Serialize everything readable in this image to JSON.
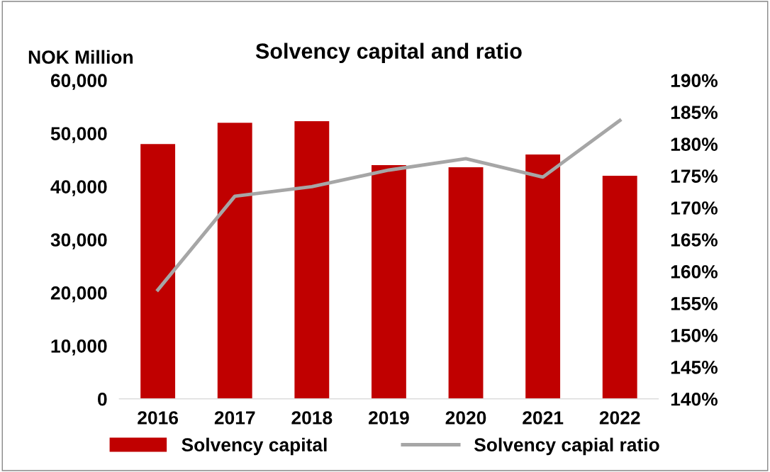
{
  "chart_data": {
    "type": "bar",
    "title": "Solvency capital and ratio",
    "ylabel": "NOK Million",
    "categories": [
      "2016",
      "2017",
      "2018",
      "2019",
      "2020",
      "2021",
      "2022"
    ],
    "series": [
      {
        "name": "Solvency capital",
        "color": "#c00000",
        "values": [
          48000,
          52000,
          52300,
          44000,
          43600,
          46000,
          42000
        ]
      },
      {
        "name": "Solvency capial ratio",
        "type": "line",
        "axis": "y2",
        "color": "#a6a6a6",
        "values": [
          157.1,
          171.8,
          173.3,
          175.9,
          177.7,
          174.8,
          183.7
        ]
      }
    ],
    "ylim": [
      0,
      60000
    ],
    "yticks": [
      {
        "value": 0,
        "label": "0"
      },
      {
        "value": 10000,
        "label": "10,000"
      },
      {
        "value": 20000,
        "label": "20,000"
      },
      {
        "value": 30000,
        "label": "30,000"
      },
      {
        "value": 40000,
        "label": "40,000"
      },
      {
        "value": 50000,
        "label": "50,000"
      },
      {
        "value": 60000,
        "label": "60,000"
      }
    ],
    "y2lim": [
      140,
      190
    ],
    "y2ticks": [
      {
        "value": 140,
        "label": "140%"
      },
      {
        "value": 145,
        "label": "145%"
      },
      {
        "value": 150,
        "label": "150%"
      },
      {
        "value": 155,
        "label": "155%"
      },
      {
        "value": 160,
        "label": "160%"
      },
      {
        "value": 165,
        "label": "165%"
      },
      {
        "value": 170,
        "label": "170%"
      },
      {
        "value": 175,
        "label": "175%"
      },
      {
        "value": 180,
        "label": "180%"
      },
      {
        "value": 185,
        "label": "185%"
      },
      {
        "value": 190,
        "label": "190%"
      }
    ],
    "legend": "bottom",
    "marker": "none",
    "line_style": "solid"
  }
}
